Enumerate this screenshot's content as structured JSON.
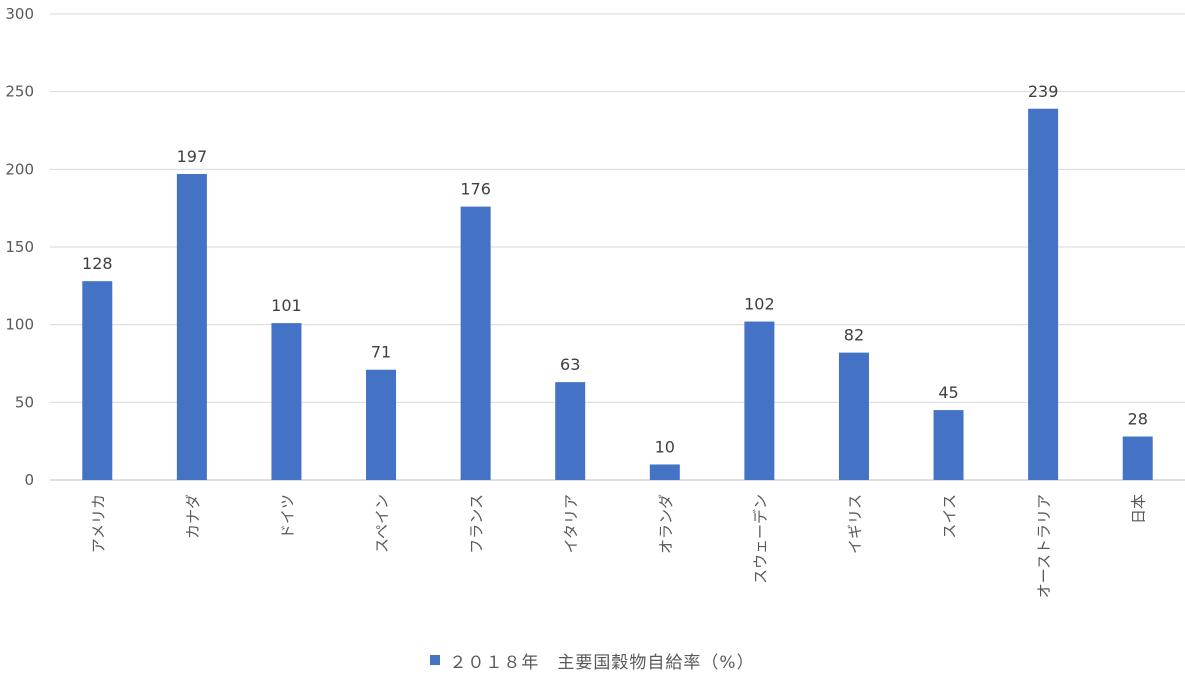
{
  "chart_data": {
    "type": "bar",
    "categories": [
      "アメリカ",
      "カナダ",
      "ドイツ",
      "スペイン",
      "フランス",
      "イタリア",
      "オランダ",
      "スウェーデン",
      "イギリス",
      "スイス",
      "オーストラリア",
      "日本"
    ],
    "series": [
      {
        "name": "２０１８年　主要国穀物自給率（%）",
        "values": [
          128,
          197,
          101,
          71,
          176,
          63,
          10,
          102,
          82,
          45,
          239,
          28
        ],
        "color": "#4472c4"
      }
    ],
    "ylim": [
      0,
      300
    ],
    "yticks": [
      0,
      50,
      100,
      150,
      200,
      250,
      300
    ],
    "grid": true,
    "legend_position": "bottom",
    "data_labels": true
  }
}
